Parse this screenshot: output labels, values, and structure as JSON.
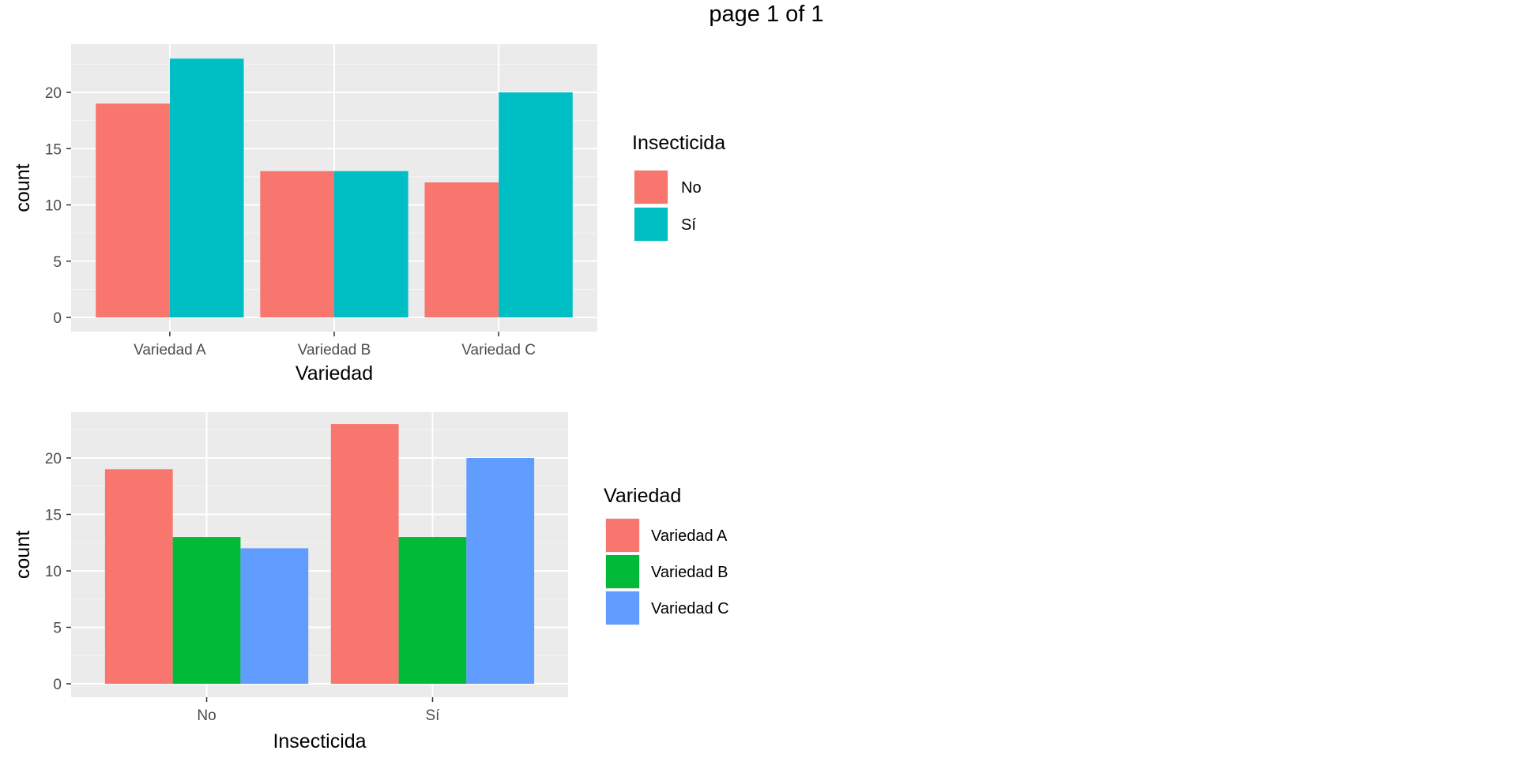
{
  "page": {
    "title": "page 1 of 1"
  },
  "chart_data": [
    {
      "type": "bar",
      "categories": [
        "Variedad A",
        "Variedad B",
        "Variedad C"
      ],
      "series": [
        {
          "name": "No",
          "values": [
            19,
            13,
            12
          ],
          "color": "#F8766D"
        },
        {
          "name": "Sí",
          "values": [
            23,
            13,
            20
          ],
          "color": "#00BFC4"
        }
      ],
      "xlabel": "Variedad",
      "ylabel": "count",
      "ylim": [
        0,
        24
      ],
      "yticks": [
        0,
        5,
        10,
        15,
        20
      ],
      "legend_title": "Insecticida",
      "legend_position": "right",
      "grid": true
    },
    {
      "type": "bar",
      "categories": [
        "No",
        "Sí"
      ],
      "series": [
        {
          "name": "Variedad A",
          "values": [
            19,
            23
          ],
          "color": "#F8766D"
        },
        {
          "name": "Variedad B",
          "values": [
            13,
            13
          ],
          "color": "#00BA38"
        },
        {
          "name": "Variedad C",
          "values": [
            12,
            20
          ],
          "color": "#619CFF"
        }
      ],
      "xlabel": "Insecticida",
      "ylabel": "count",
      "ylim": [
        0,
        24
      ],
      "yticks": [
        0,
        5,
        10,
        15,
        20
      ],
      "legend_title": "Variedad",
      "legend_position": "right",
      "grid": true
    }
  ]
}
